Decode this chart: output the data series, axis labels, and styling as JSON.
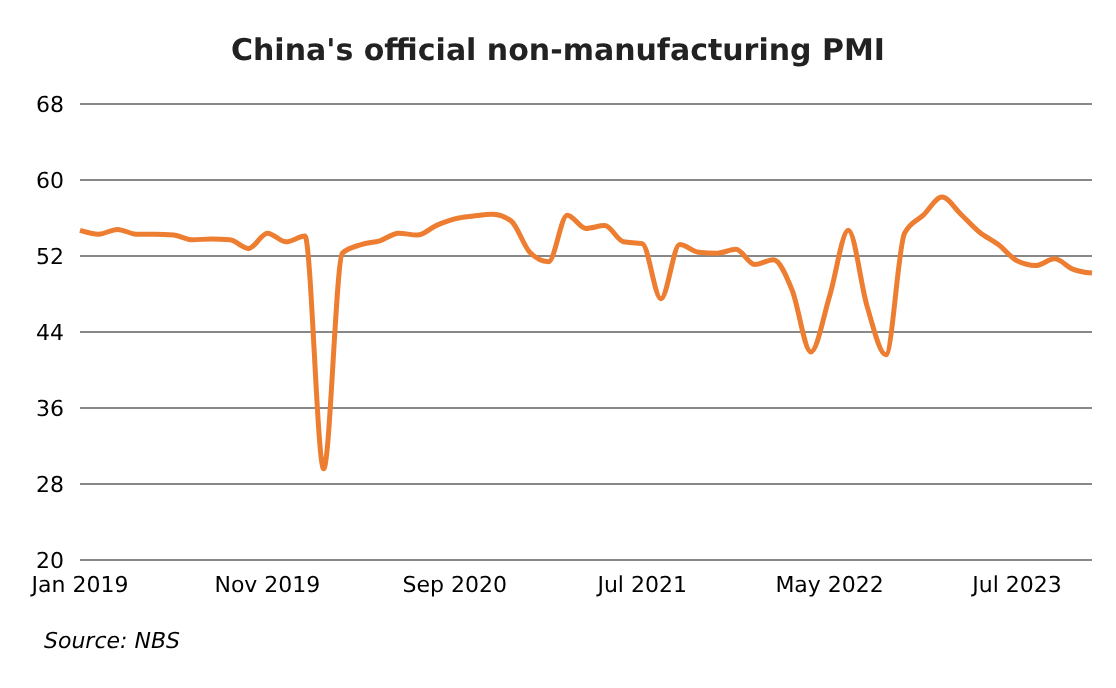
{
  "chart_data": {
    "type": "line",
    "title": "China's official non-manufacturing PMI",
    "categories": [
      "Jan 2019",
      null,
      null,
      null,
      null,
      null,
      null,
      null,
      null,
      null,
      "Nov 2019",
      null,
      null,
      null,
      null,
      null,
      null,
      null,
      null,
      null,
      "Sep 2020",
      null,
      null,
      null,
      null,
      null,
      null,
      null,
      null,
      null,
      "Jul 2021",
      null,
      null,
      null,
      null,
      null,
      null,
      null,
      null,
      null,
      "May 2022",
      null,
      null,
      null,
      null,
      null,
      null,
      null,
      null,
      null,
      "Jul 2023",
      null,
      null,
      null,
      null
    ],
    "series": [
      {
        "color": "#ed7d31",
        "values": [
          54.7,
          54.3,
          54.8,
          54.3,
          54.3,
          54.2,
          53.7,
          53.8,
          53.7,
          52.8,
          54.4,
          53.5,
          54.1,
          29.6,
          52.3,
          53.2,
          53.6,
          54.4,
          54.2,
          55.2,
          55.9,
          56.2,
          56.4,
          55.7,
          52.4,
          51.4,
          56.3,
          54.9,
          55.2,
          53.5,
          53.3,
          47.5,
          53.2,
          52.4,
          52.3,
          52.7,
          51.1,
          51.6,
          48.4,
          41.9,
          47.8,
          54.7,
          46.7,
          41.6,
          54.4,
          56.3,
          58.2,
          56.4,
          54.5,
          53.2,
          51.5,
          51.0,
          51.7,
          50.6,
          50.2
        ]
      }
    ],
    "ylim": [
      20,
      68
    ],
    "yticks": [
      20,
      28,
      36,
      44,
      52,
      60,
      68
    ],
    "grid": "y",
    "legend": false,
    "marker": "none",
    "line_style": "solid",
    "annotations": [
      "Source: NBS"
    ]
  }
}
